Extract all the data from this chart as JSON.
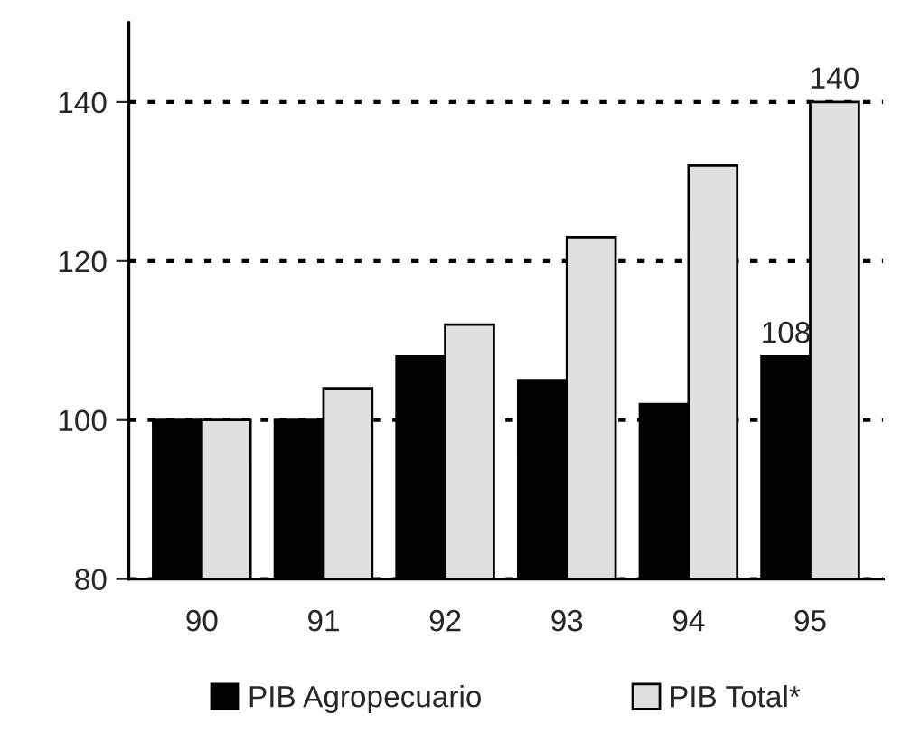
{
  "chart_data": {
    "type": "bar",
    "categories": [
      "90",
      "91",
      "92",
      "93",
      "94",
      "95"
    ],
    "series": [
      {
        "name": "PIB Agropecuario",
        "color": "#000000",
        "values": [
          100,
          100,
          108,
          105,
          102,
          108
        ],
        "value_labels": [
          null,
          null,
          null,
          null,
          null,
          "108"
        ]
      },
      {
        "name": "PIB Total*",
        "color": "#e0e0e0",
        "values": [
          100,
          104,
          112,
          123,
          132,
          140
        ],
        "value_labels": [
          null,
          null,
          null,
          null,
          null,
          "140"
        ]
      }
    ],
    "ylim": [
      80,
      150
    ],
    "yticks": [
      80,
      100,
      120,
      140
    ],
    "grid": "y",
    "line_style": "dotted",
    "legend": "bottom"
  }
}
